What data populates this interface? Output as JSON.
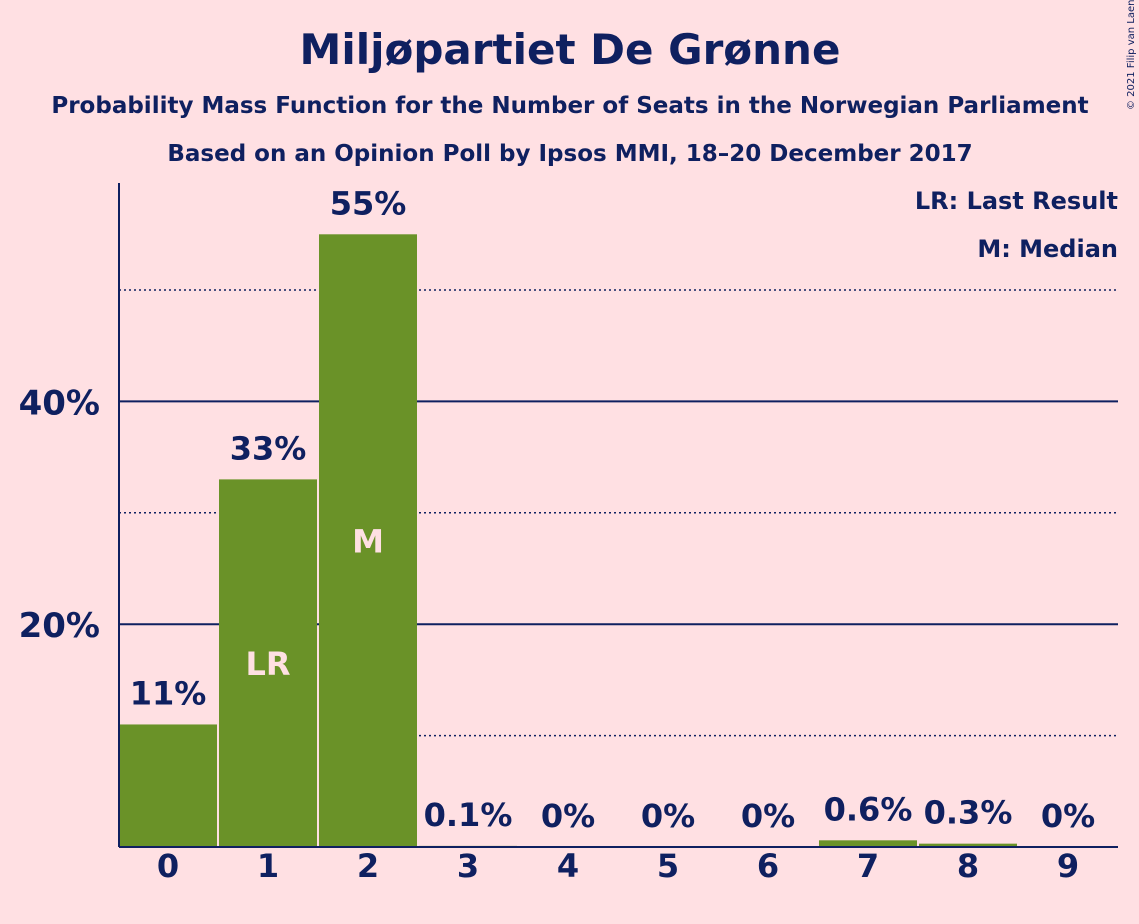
{
  "chart_data": {
    "type": "bar",
    "title": "Miljøpartiet De Grønne",
    "subtitle": "Probability Mass Function for the Number of Seats in the Norwegian Parliament",
    "subtitle2": "Based on an Opinion Poll by Ipsos MMI, 18–20 December 2017",
    "copyright": "© 2021 Filip van Laenen",
    "categories": [
      "0",
      "1",
      "2",
      "3",
      "4",
      "5",
      "6",
      "7",
      "8",
      "9"
    ],
    "values": [
      11,
      33,
      55,
      0.1,
      0,
      0,
      0,
      0.6,
      0.3,
      0
    ],
    "value_labels": [
      "11%",
      "33%",
      "55%",
      "0.1%",
      "0%",
      "0%",
      "0%",
      "0.6%",
      "0.3%",
      "0%"
    ],
    "bar_markers": {
      "1": "LR",
      "2": "M"
    },
    "ylim": [
      0,
      60
    ],
    "yticks": [
      20,
      40
    ],
    "ytick_labels": [
      "20%",
      "40%"
    ],
    "minor_gridlines": [
      10,
      30,
      50
    ],
    "legend": {
      "position": "top-right",
      "lines": [
        "LR: Last Result",
        "M: Median"
      ]
    },
    "colors": {
      "bar": "#6a9228",
      "text": "#0f2060",
      "background": "#ffe0e3",
      "inner_label": "#ffe0e3"
    }
  }
}
